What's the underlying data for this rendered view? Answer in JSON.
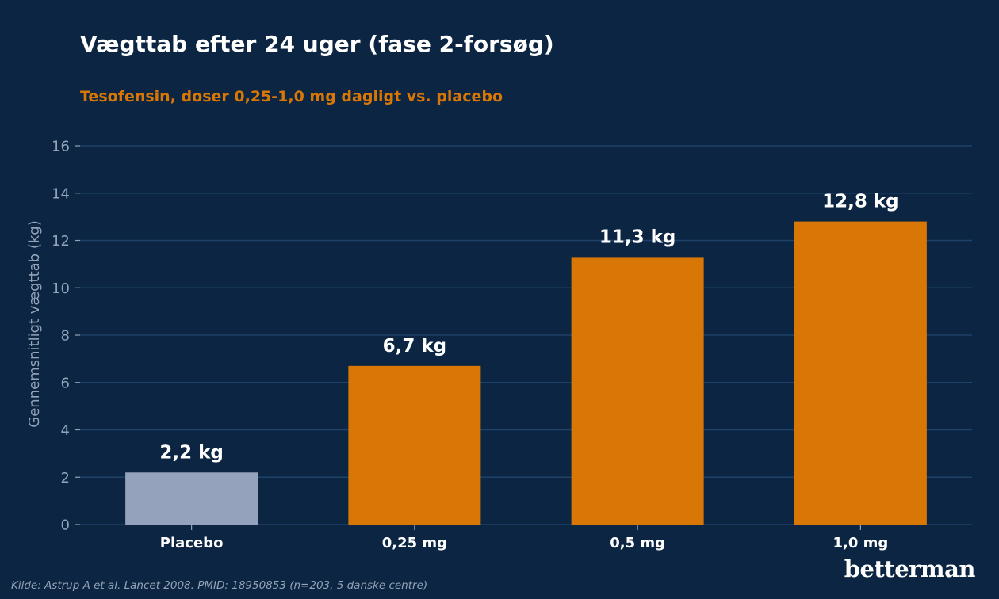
{
  "chart_data": {
    "type": "bar",
    "title": "Vægttab efter 24 uger (fase 2-forsøg)",
    "subtitle": "Tesofensin, doser 0,25-1,0 mg dagligt vs. placebo",
    "xlabel": "",
    "ylabel": "Gennemsnitligt vægttab (kg)",
    "ylim": [
      0,
      16
    ],
    "yticks": [
      "0",
      "2",
      "4",
      "6",
      "8",
      "10",
      "12",
      "14",
      "16"
    ],
    "grid": "horizontal",
    "categories": [
      "Placebo",
      "0,25 mg",
      "0,5 mg",
      "1,0 mg"
    ],
    "values": [
      2.2,
      6.7,
      11.3,
      12.8
    ],
    "data_labels": [
      "2,2 kg",
      "6,7 kg",
      "11,3 kg",
      "12,8 kg"
    ],
    "bar_colors": [
      "#94a3bb",
      "#d97706",
      "#d97706",
      "#d97706"
    ]
  },
  "colors": {
    "background": "#0b2542",
    "grid": "#1e4268",
    "accent": "#d97706",
    "placebo": "#94a3bb",
    "muted_text": "#94a3b8"
  },
  "footer": {
    "source": "Kilde: Astrup A et al. Lancet 2008. PMID: 18950853 (n=203, 5 danske centre)",
    "brand": "betterman"
  }
}
